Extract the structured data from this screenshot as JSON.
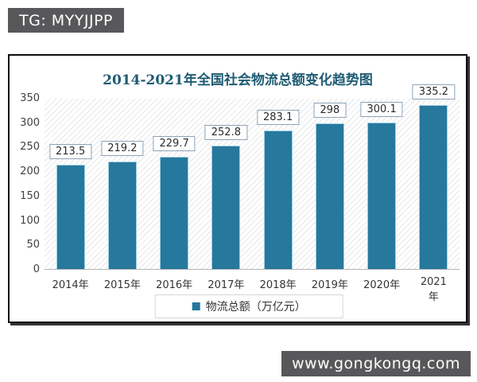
{
  "badges": {
    "tg": "TG: MYYJJPP",
    "site": "www.gongkongq.com"
  },
  "chart_data": {
    "type": "bar",
    "title": "2014-2021年全国社会物流总额变化趋势图",
    "categories": [
      "2014年",
      "2015年",
      "2016年",
      "2017年",
      "2018年",
      "2019年",
      "2020年",
      "2021年"
    ],
    "values": [
      213.5,
      219.2,
      229.7,
      252.8,
      283.1,
      298,
      300.1,
      335.2
    ],
    "value_labels": [
      "213.5",
      "219.2",
      "229.7",
      "252.8",
      "283.1",
      "298",
      "300.1",
      "335.2"
    ],
    "legend": "物流总额（万亿元）",
    "xlabel": "",
    "ylabel": "",
    "ylim": [
      0,
      350
    ],
    "ytick_step": 50,
    "yticks": [
      0,
      50,
      100,
      150,
      200,
      250,
      300,
      350
    ],
    "grid": false,
    "legend_position": "bottom",
    "plot_background": "diagonal-hatch",
    "colors": {
      "bar": "#26789d",
      "title": "#1f5c73",
      "badge_background": "#58585a",
      "label_box_border": "#8ca3b8",
      "hatch_line": "#e7e7e7"
    }
  }
}
